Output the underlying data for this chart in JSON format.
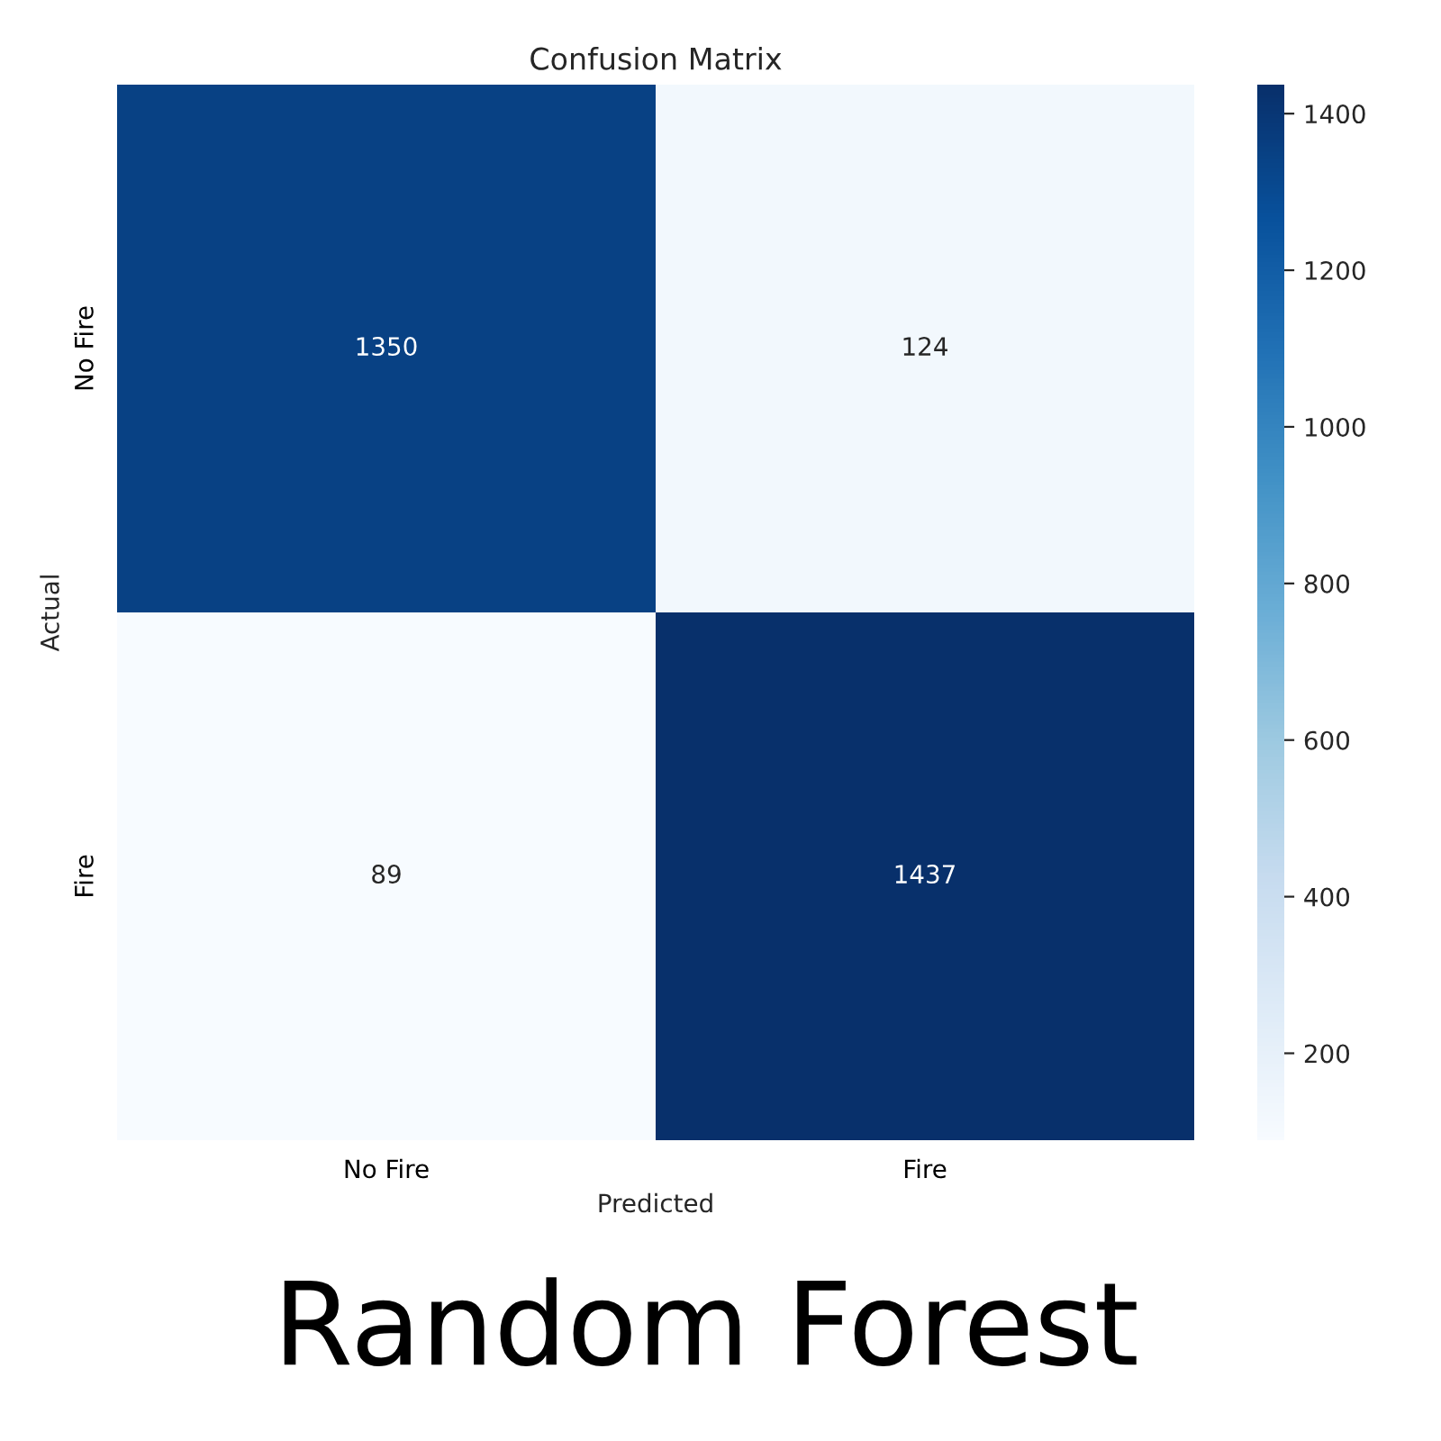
{
  "chart_data": {
    "type": "heatmap",
    "title": "Confusion Matrix",
    "xlabel": "Predicted",
    "ylabel": "Actual",
    "categories": [
      "No Fire",
      "Fire"
    ],
    "y_categories": [
      "No Fire",
      "Fire"
    ],
    "cells": [
      [
        1350,
        124
      ],
      [
        89,
        1437
      ]
    ],
    "data_labels": true,
    "clim": [
      89,
      1437
    ],
    "cticks": [
      200,
      400,
      600,
      800,
      1000,
      1200,
      1400
    ],
    "annotations": [
      "Random Forest"
    ]
  }
}
